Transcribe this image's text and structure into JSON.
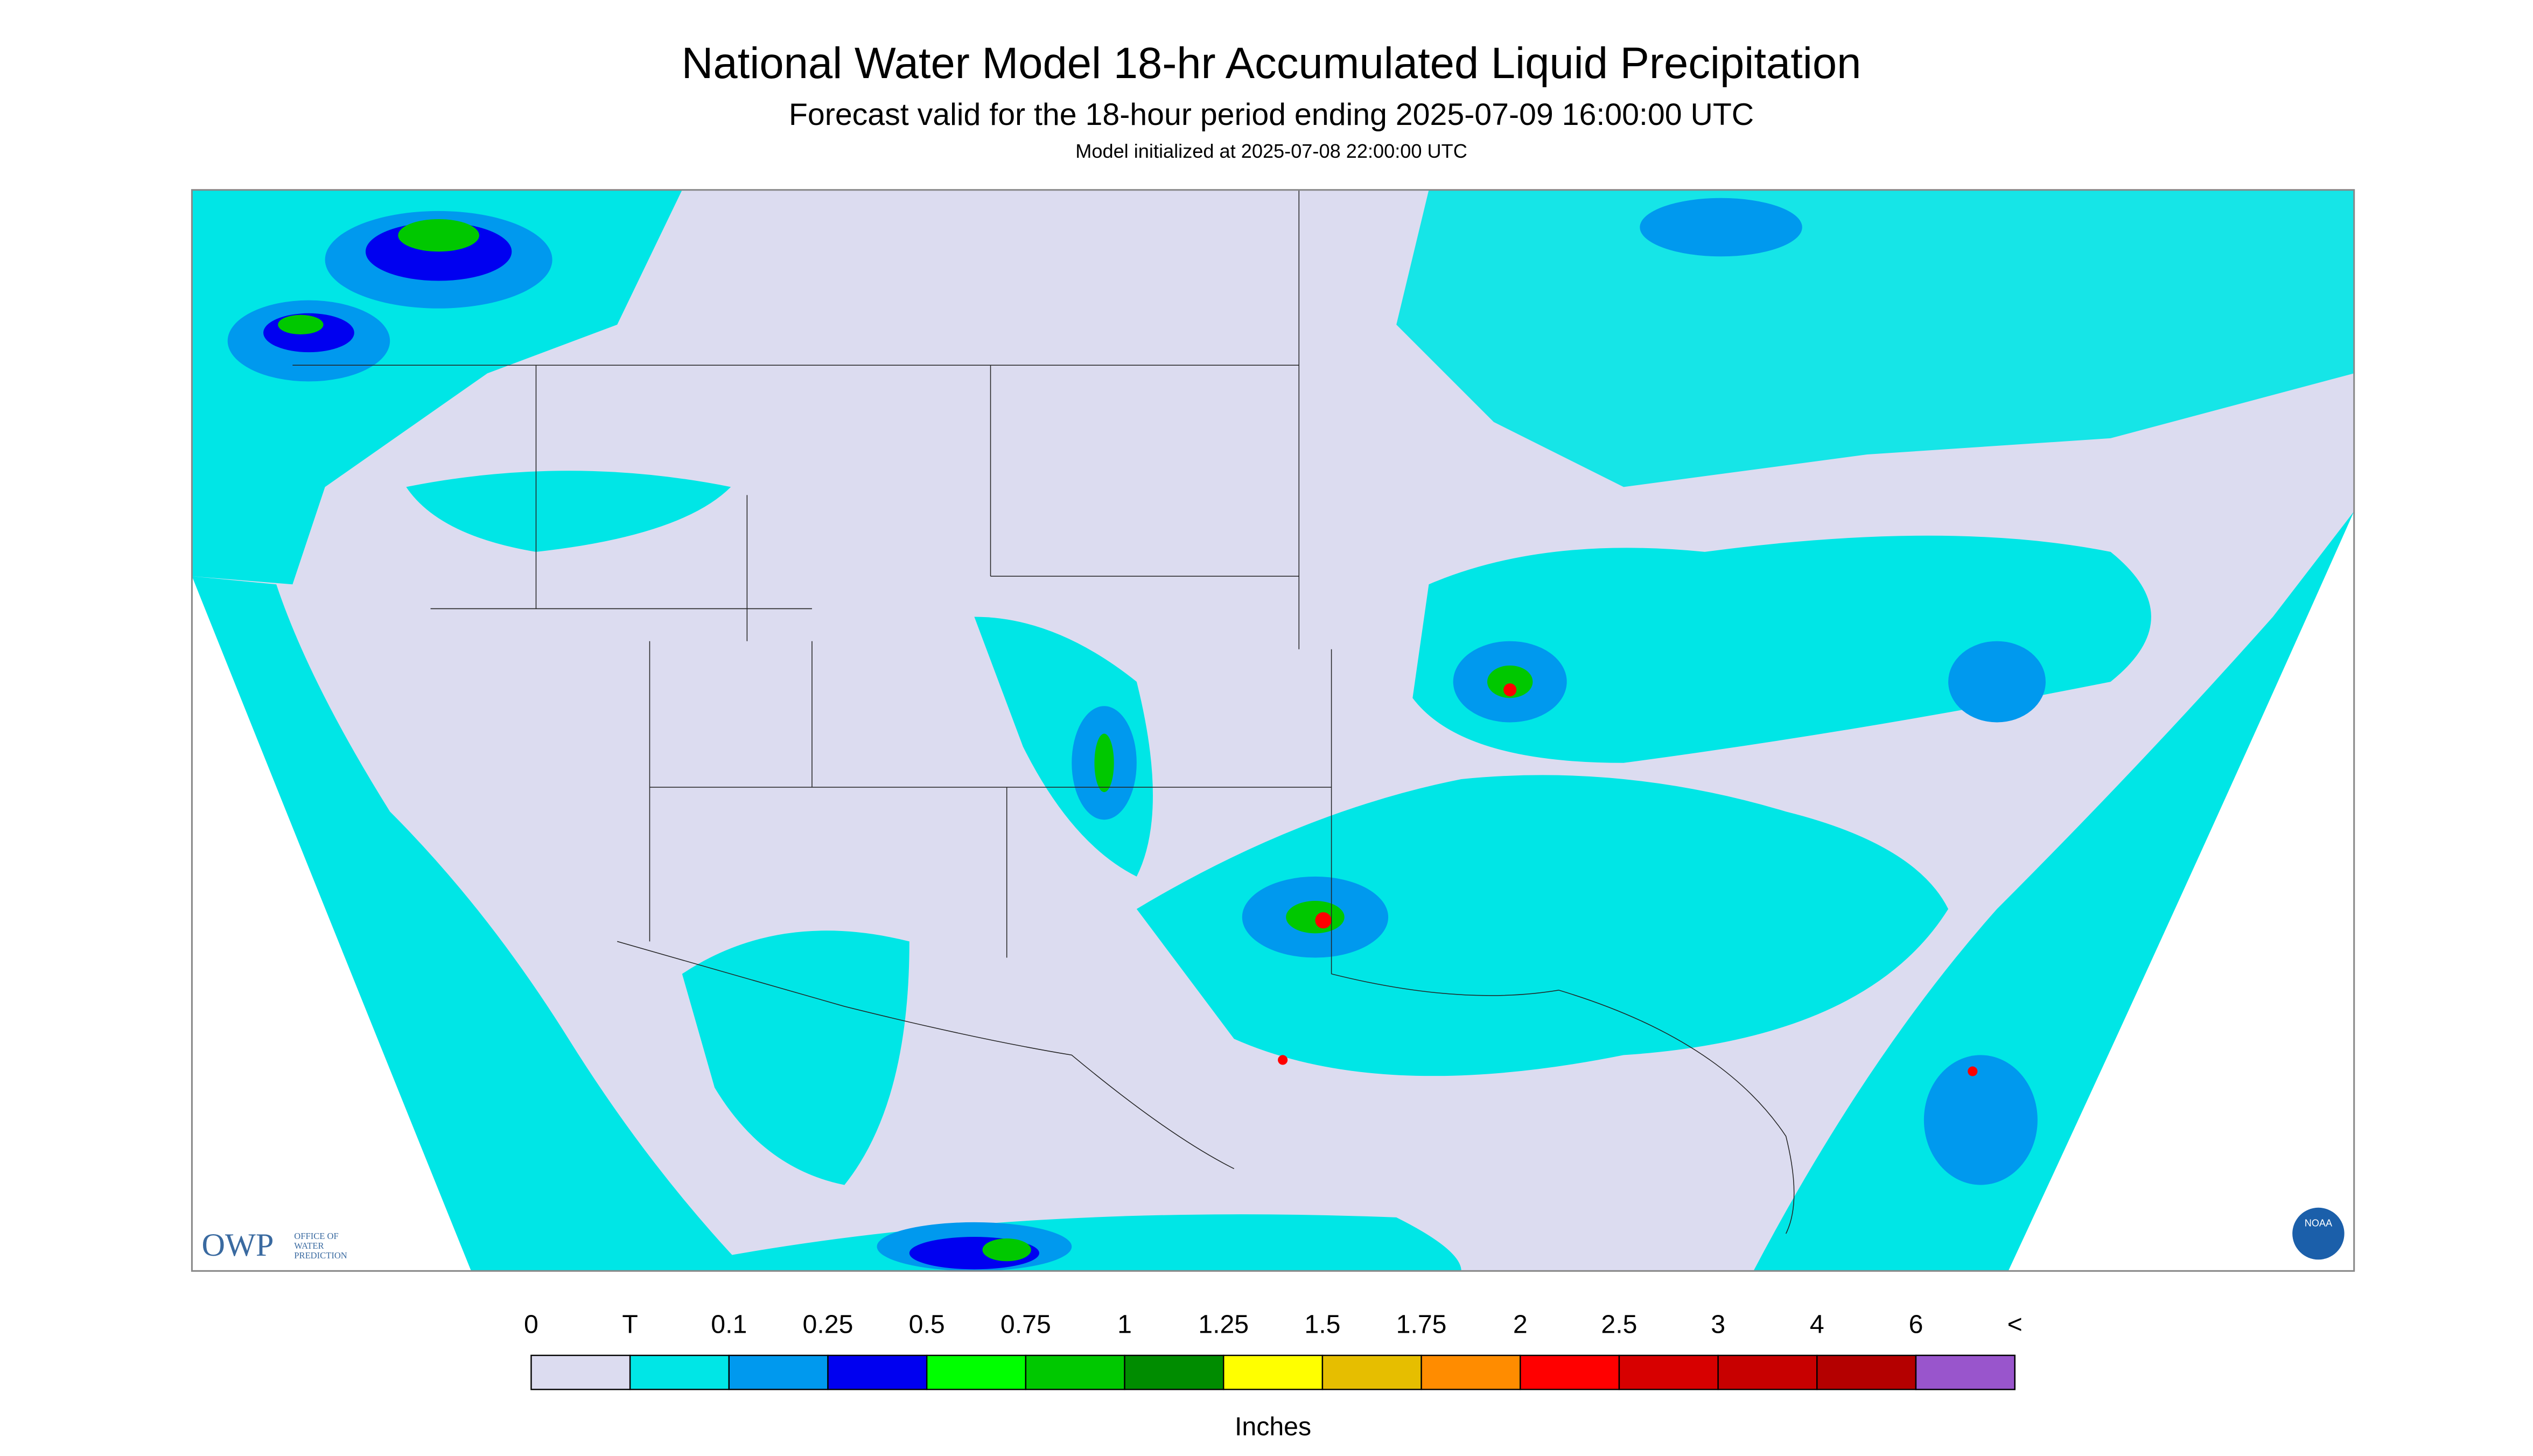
{
  "header": {
    "title": "National Water Model 18-hr Accumulated Liquid Precipitation",
    "subtitle": "Forecast valid for the 18-hour period ending 2025-07-09 16:00:00 UTC",
    "initialized": "Model initialized at 2025-07-08 22:00:00 UTC"
  },
  "legend": {
    "labels": [
      "0",
      "T",
      "0.1",
      "0.25",
      "0.5",
      "0.75",
      "1",
      "1.25",
      "1.5",
      "1.75",
      "2",
      "2.5",
      "3",
      "4",
      "6",
      "<"
    ],
    "colors": [
      "#dcdcf0",
      "#00e6e6",
      "#0099ee",
      "#0000f0",
      "#00ff00",
      "#00c800",
      "#008c00",
      "#ffff00",
      "#e6be00",
      "#ff8c00",
      "#ff0000",
      "#d70000",
      "#c80000",
      "#b40000",
      "#ff00ff",
      "#9955cc"
    ],
    "units": "Inches"
  },
  "logos": {
    "owp": "OWP",
    "owp_text": [
      "OFFICE OF",
      "WATER",
      "PREDICTION"
    ],
    "noaa": "NOAA"
  }
}
